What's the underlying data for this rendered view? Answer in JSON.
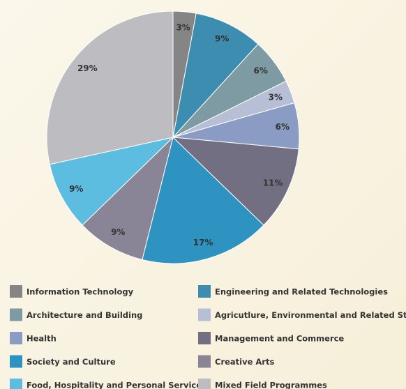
{
  "chart_data": {
    "type": "pie",
    "categories": [
      "Information Technology",
      "Engineering and Related Technologies",
      "Architecture and Building",
      "Agricutlure, Environmental and Related Studies",
      "Health",
      "Management and Commerce",
      "Society and Culture",
      "Creative Arts",
      "Food, Hospitality and Personal Services",
      "Mixed Field Programmes"
    ],
    "values": [
      3,
      9,
      6,
      3,
      6,
      11,
      17,
      9,
      9,
      29
    ],
    "value_labels": [
      "3%",
      "9%",
      "6%",
      "3%",
      "6%",
      "11%",
      "17%",
      "9%",
      "9%",
      "29%"
    ],
    "colors": [
      "#858585",
      "#3d8db0",
      "#7e9ba3",
      "#b6bfd5",
      "#8b9cc4",
      "#716f81",
      "#2e93c1",
      "#8a8596",
      "#5cbde1",
      "#bdbdc1"
    ]
  }
}
